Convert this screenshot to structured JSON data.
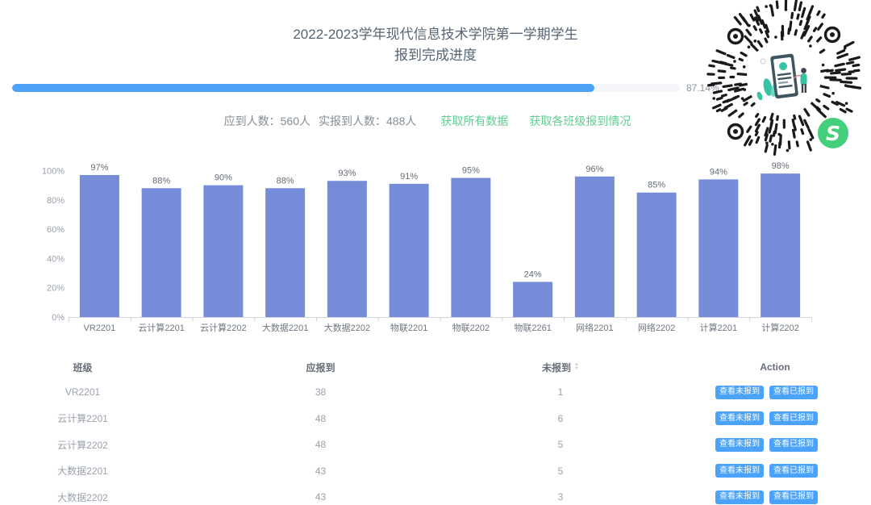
{
  "header": {
    "title_line1": "2022-2023学年现代信息技术学院第一学期学生",
    "title_line2": "报到完成进度"
  },
  "progress": {
    "percent": 87.14,
    "label": "87.14%"
  },
  "stats": {
    "expected_label": "应到人数：560人",
    "actual_label": "实报到人数：488人",
    "link_all_data": "获取所有数据",
    "link_class_data": "获取各班级报到情况"
  },
  "chart_data": {
    "type": "bar",
    "categories": [
      "VR2201",
      "云计算2201",
      "云计算2202",
      "大数据2201",
      "大数据2202",
      "物联2201",
      "物联2202",
      "物联2261",
      "网络2201",
      "网络2202",
      "计算2201",
      "计算2202"
    ],
    "values": [
      97,
      88,
      90,
      88,
      93,
      91,
      95,
      24,
      96,
      85,
      94,
      98
    ],
    "value_suffix": "%",
    "title": "",
    "xlabel": "",
    "ylabel": "",
    "ylim": [
      0,
      100
    ],
    "yticks": [
      "0%",
      "20%",
      "40%",
      "60%",
      "80%",
      "100%"
    ],
    "bar_color": "#758CD8",
    "grid": false,
    "legend": false,
    "value_labels": true
  },
  "table": {
    "headers": [
      "班级",
      "应报到",
      "未报到",
      "Action"
    ],
    "sorter_column": "未报到",
    "rows": [
      {
        "class": "VR2201",
        "expected": "38",
        "not_reported": "1"
      },
      {
        "class": "云计算2201",
        "expected": "48",
        "not_reported": "6"
      },
      {
        "class": "云计算2202",
        "expected": "48",
        "not_reported": "5"
      },
      {
        "class": "大数据2201",
        "expected": "43",
        "not_reported": "5"
      },
      {
        "class": "大数据2202",
        "expected": "43",
        "not_reported": "3"
      }
    ],
    "action_buttons": [
      "查看未报到",
      "查看已报到"
    ]
  },
  "qr": {
    "description": "wechat-mini-program-circular-code"
  },
  "theme": {
    "progress_blue": "#4da2f8",
    "bar_blue": "#758CD8",
    "link_green": "#5fce92",
    "button_blue": "#4aa3f8",
    "logo_green": "#43cf7c",
    "qr_ink": "#1a1a1a"
  }
}
